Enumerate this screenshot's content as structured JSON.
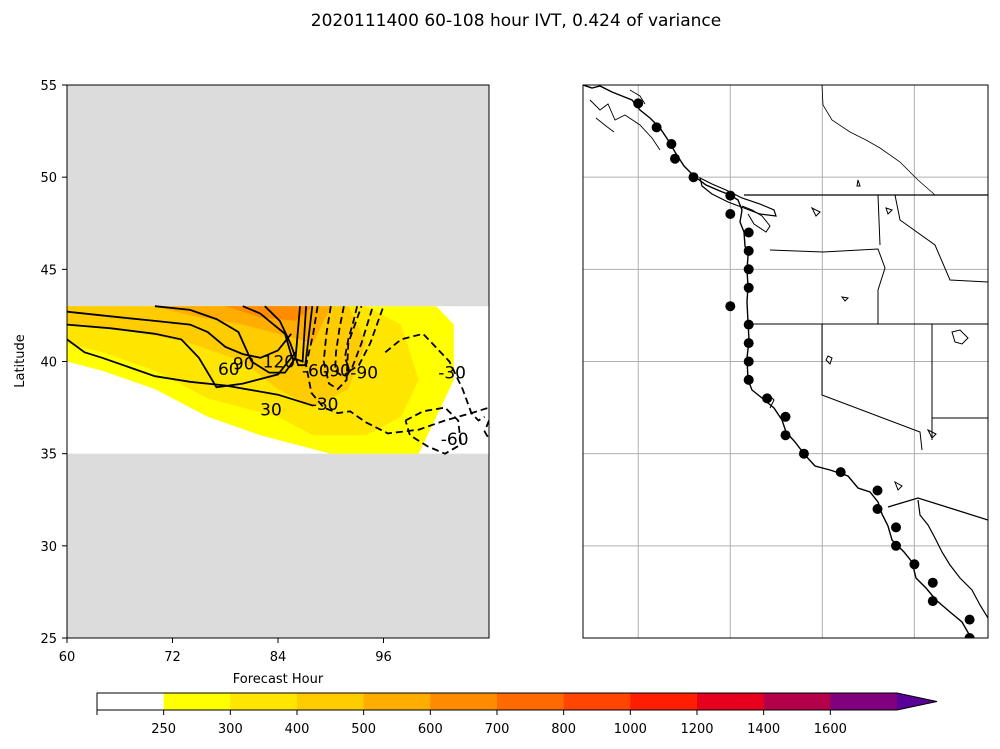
{
  "figure": {
    "title": "2020111400 60-108 hour IVT, 0.424 of variance"
  },
  "chart_data": [
    {
      "type": "heatmap",
      "panel": "left",
      "xlabel": "Forecast Hour",
      "ylabel": "Latitude",
      "xlim": [
        60,
        108
      ],
      "ylim": [
        25,
        55
      ],
      "xticks": [
        "60",
        "72",
        "84",
        "96"
      ],
      "yticks": [
        "25",
        "30",
        "35",
        "40",
        "45",
        "50",
        "55"
      ],
      "data_lat_range": [
        35,
        43
      ],
      "masked_color": "#dcdcdc",
      "fill_levels": [
        250,
        300,
        400,
        500,
        600,
        700,
        800,
        1000,
        1200,
        1400,
        1600
      ],
      "fill_regions": [
        {
          "level": 250,
          "x": [
            60,
            68,
            76,
            84,
            88,
            96,
            102,
            104,
            104,
            102,
            100,
            90,
            86,
            82,
            76,
            70,
            64,
            60
          ],
          "y": [
            43,
            43,
            43,
            43,
            43,
            43,
            43,
            42,
            39,
            37,
            35,
            35,
            35.5,
            36,
            37,
            38.5,
            39.5,
            40
          ]
        },
        {
          "level": 300,
          "x": [
            60,
            68,
            76,
            84,
            88,
            94,
            98,
            100,
            98,
            94,
            88,
            84,
            80,
            76,
            70,
            64,
            60
          ],
          "y": [
            43,
            43,
            43,
            43,
            43,
            43,
            42,
            39,
            37,
            36,
            36,
            37,
            37.5,
            38,
            39.5,
            40.5,
            41
          ]
        },
        {
          "level": 400,
          "x": [
            60,
            70,
            80,
            86,
            92,
            94,
            92,
            88,
            84,
            80,
            74,
            66,
            60
          ],
          "y": [
            43,
            43,
            43,
            43,
            43,
            41,
            38.5,
            37.5,
            38.5,
            40,
            41,
            41.8,
            42
          ]
        },
        {
          "level": 500,
          "x": [
            70,
            80,
            86,
            90,
            88,
            84,
            80,
            74,
            70
          ],
          "y": [
            43,
            43,
            43,
            43,
            41,
            41.5,
            42,
            42.5,
            43
          ]
        },
        {
          "level": 600,
          "x": [
            78,
            84,
            88,
            86,
            82,
            78
          ],
          "y": [
            43,
            43,
            43,
            42.2,
            42.4,
            43
          ]
        }
      ],
      "contours": [
        {
          "value": 30,
          "label": "30",
          "style": "solid",
          "x": [
            60,
            62,
            64,
            67,
            70,
            74,
            78,
            84,
            88
          ],
          "y": [
            41.2,
            40.5,
            40.2,
            39.7,
            39.2,
            38.9,
            38.7,
            38.2,
            37.6
          ]
        },
        {
          "value": 60,
          "label": "60",
          "style": "solid",
          "x": [
            60,
            65,
            70,
            73,
            75,
            77,
            80,
            84,
            86
          ],
          "y": [
            42,
            41.8,
            41.5,
            41.2,
            40.2,
            38.6,
            38.8,
            39.3,
            40.5
          ]
        },
        {
          "value": 90,
          "label": "90",
          "style": "solid",
          "x": [
            60,
            66,
            70,
            74,
            76,
            78,
            80,
            82,
            84,
            85.5
          ],
          "y": [
            42.7,
            42.4,
            42.2,
            42,
            41.6,
            40.8,
            40.4,
            40.2,
            40.6,
            41.5
          ]
        },
        {
          "value": 120,
          "label": "120",
          "style": "solid",
          "x": [
            70,
            74,
            77,
            79.5,
            81,
            83,
            84.8,
            86,
            86.5
          ],
          "y": [
            43,
            42.8,
            42.3,
            41.6,
            40,
            39.4,
            39.4,
            40.2,
            43
          ]
        },
        {
          "value": 150,
          "label": "",
          "style": "solid",
          "x": [
            80,
            82,
            83.5,
            84.8,
            85.6,
            86.8,
            87.2
          ],
          "y": [
            43,
            42.6,
            42,
            41.5,
            40.2,
            40,
            43
          ]
        },
        {
          "value": 180,
          "label": "",
          "style": "solid",
          "x": [
            82.5,
            84.2,
            85.4,
            86.3,
            87.1,
            87.9
          ],
          "y": [
            43,
            42.2,
            41,
            39.8,
            39.8,
            43
          ]
        },
        {
          "value": -30,
          "label": "-30",
          "style": "dashed",
          "x": [
            88.5,
            88,
            87.2,
            87.8,
            89.2,
            90.8,
            92.2,
            94,
            96.5,
            100,
            103,
            106,
            108
          ],
          "y": [
            43,
            41.5,
            39.8,
            38.3,
            37.5,
            37.2,
            37.3,
            36.7,
            36.1,
            36.3,
            36.8,
            37.2,
            37.5
          ]
        },
        {
          "value": -60,
          "label": "-60",
          "style": "dashed",
          "x": [
            90,
            89.5,
            89.2,
            89.8,
            90.8,
            91.8,
            92,
            93.5
          ],
          "y": [
            43,
            41.5,
            40,
            38.8,
            38.5,
            39,
            41,
            43
          ]
        },
        {
          "value": -90,
          "label": "-90",
          "style": "dashed",
          "x": [
            91.5,
            91,
            90.6,
            90.5,
            91.3,
            92.3,
            93.5,
            94.8
          ],
          "y": [
            43,
            41.8,
            40.5,
            39.5,
            39.2,
            39.5,
            41,
            43
          ]
        },
        {
          "value": -120,
          "label": "",
          "style": "dashed",
          "x": [
            93,
            92.6,
            92,
            91.6,
            92.2,
            93.2,
            94.5,
            96
          ],
          "y": [
            43,
            42.2,
            41.2,
            40.2,
            39.5,
            39.8,
            41,
            43
          ]
        },
        {
          "value": -30,
          "label": "-30",
          "style": "dashed",
          "x": [
            96.2,
            98,
            100.5,
            103.5,
            105,
            106,
            106.8,
            107.5
          ],
          "y": [
            40.5,
            41.2,
            41.5,
            40,
            38.5,
            37.2,
            36.8,
            37
          ]
        },
        {
          "value": -60,
          "label": "-60",
          "style": "dashed",
          "x": [
            98.5,
            100.5,
            103,
            104.5,
            104.8,
            103,
            101,
            99,
            98.5
          ],
          "y": [
            36.8,
            37.3,
            37.5,
            36.8,
            35.5,
            35,
            35.4,
            36,
            36.8
          ]
        },
        {
          "value": -30,
          "label": "",
          "style": "dashed",
          "x": [
            108,
            107.5,
            108
          ],
          "y": [
            36.8,
            36.2,
            35.8
          ]
        }
      ],
      "contour_label_positions": [
        {
          "text": "30",
          "x": 83.2,
          "y": 37.4
        },
        {
          "text": "60",
          "x": 78.4,
          "y": 39.6
        },
        {
          "text": "90",
          "x": 80.1,
          "y": 39.9
        },
        {
          "text": "120",
          "x": 84.1,
          "y": 40.0
        },
        {
          "text": "-30",
          "x": 89.3,
          "y": 37.7
        },
        {
          "text": "-60",
          "x": 88.3,
          "y": 39.5
        },
        {
          "text": "-90",
          "x": 90.7,
          "y": 39.5
        },
        {
          "text": "-90",
          "x": 93.8,
          "y": 39.4
        },
        {
          "text": "-30",
          "x": 103.8,
          "y": 39.4
        },
        {
          "text": "-60",
          "x": 104.1,
          "y": 35.8
        }
      ]
    },
    {
      "type": "scatter",
      "panel": "right",
      "description": "Map of the west coast of North America with IVT analysis points",
      "lon_range": [
        -134,
        -112
      ],
      "lat_range": [
        25,
        55
      ],
      "gridlines_lon": [
        -131,
        -126,
        -121,
        -116
      ],
      "gridlines_lat": [
        30,
        35,
        40,
        45,
        50
      ],
      "points": [
        {
          "lon": -131.0,
          "lat": 54.0
        },
        {
          "lon": -130.0,
          "lat": 52.7
        },
        {
          "lon": -129.2,
          "lat": 51.8
        },
        {
          "lon": -129.0,
          "lat": 51.0
        },
        {
          "lon": -128.0,
          "lat": 50.0
        },
        {
          "lon": -126.0,
          "lat": 49.0
        },
        {
          "lon": -126.0,
          "lat": 48.0
        },
        {
          "lon": -125.0,
          "lat": 47.0
        },
        {
          "lon": -125.0,
          "lat": 46.0
        },
        {
          "lon": -125.0,
          "lat": 45.0
        },
        {
          "lon": -125.0,
          "lat": 44.0
        },
        {
          "lon": -126.0,
          "lat": 43.0
        },
        {
          "lon": -125.0,
          "lat": 42.0
        },
        {
          "lon": -125.0,
          "lat": 41.0
        },
        {
          "lon": -125.0,
          "lat": 40.0
        },
        {
          "lon": -125.0,
          "lat": 39.0
        },
        {
          "lon": -124.0,
          "lat": 38.0
        },
        {
          "lon": -123.0,
          "lat": 37.0
        },
        {
          "lon": -123.0,
          "lat": 36.0
        },
        {
          "lon": -122.0,
          "lat": 35.0
        },
        {
          "lon": -120.0,
          "lat": 34.0
        },
        {
          "lon": -118.0,
          "lat": 33.0
        },
        {
          "lon": -118.0,
          "lat": 32.0
        },
        {
          "lon": -117.0,
          "lat": 31.0
        },
        {
          "lon": -117.0,
          "lat": 30.0
        },
        {
          "lon": -116.0,
          "lat": 29.0
        },
        {
          "lon": -115.0,
          "lat": 28.0
        },
        {
          "lon": -115.0,
          "lat": 27.0
        },
        {
          "lon": -113.0,
          "lat": 26.0
        },
        {
          "lon": -113.0,
          "lat": 25.0
        }
      ]
    },
    {
      "type": "colorbar",
      "ticks": [
        "250",
        "300",
        "400",
        "500",
        "600",
        "700",
        "800",
        "1000",
        "1200",
        "1400",
        "1600"
      ],
      "colors": [
        "#ffffff",
        "#ffff00",
        "#ffe600",
        "#ffcc00",
        "#ffad00",
        "#ff8c00",
        "#ff6a00",
        "#ff4500",
        "#ff1e00",
        "#e6001e",
        "#b4004b",
        "#80007d",
        "#5a0096"
      ],
      "extend": "max"
    }
  ]
}
